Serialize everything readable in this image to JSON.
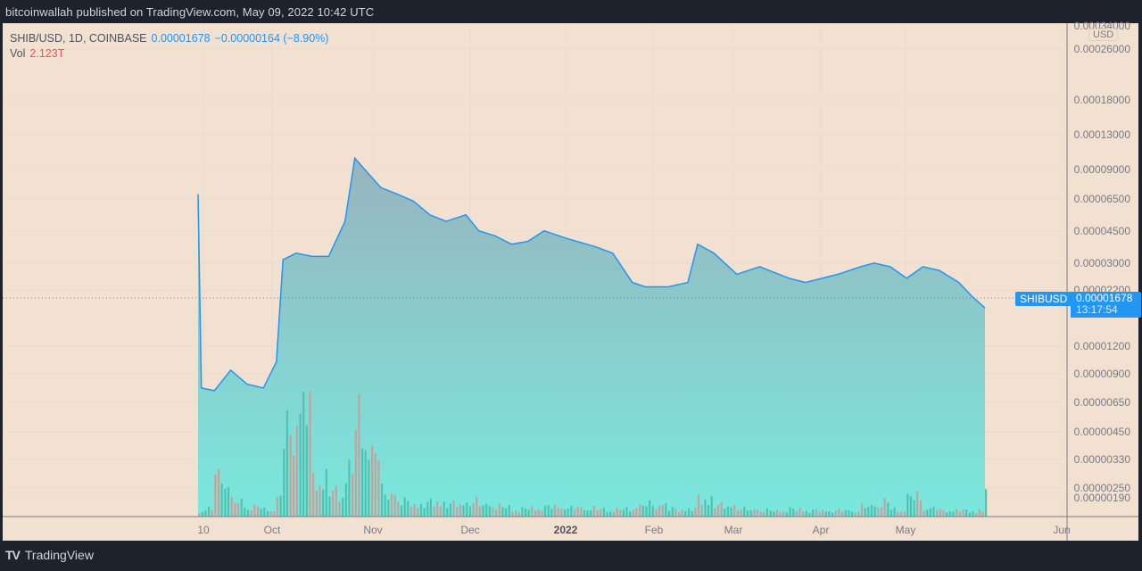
{
  "header": {
    "publish_text": "bitcoinwallah published on TradingView.com, May 09, 2022 10:42 UTC"
  },
  "legend": {
    "symbol": "SHIB/USD, 1D, COINBASE",
    "last_price": "0.00001678",
    "change": "−0.00000164 (−8.90%)",
    "vol_label": "Vol",
    "vol_value": "2.123T"
  },
  "price_axis": {
    "currency": "USD",
    "labels": [
      "0.00034000",
      "0.00026000",
      "0.00018000",
      "0.00013000",
      "0.00009000",
      "0.00006500",
      "0.00004500",
      "0.00003000",
      "0.00002200",
      "0.00001200",
      "0.00000900",
      "0.00000650",
      "0.00000450",
      "0.00000330",
      "0.00000250",
      "0.00000190"
    ]
  },
  "time_axis": {
    "labels": [
      "10",
      "Oct",
      "Nov",
      "Dec",
      "2022",
      "Feb",
      "Mar",
      "Apr",
      "May",
      "Jun"
    ]
  },
  "last_price_marker": {
    "symbol": "SHIBUSD",
    "price": "0.00001678",
    "countdown": "13:17:54"
  },
  "footer": {
    "brand": "TradingView",
    "logo_mark": "TV"
  },
  "colors": {
    "background": "#f2e0d0",
    "line": "#2196f3",
    "area_top": "#98b4bd",
    "area_bottom": "#79e8de",
    "volume_up": "#4fc3b0",
    "volume_down": "#c9a09a",
    "accent": "#2196f3",
    "vol_text": "#ef5350"
  },
  "chart_data": {
    "type": "area",
    "title": "SHIB/USD, 1D, COINBASE",
    "xlabel": "",
    "ylabel": "USD",
    "y_scale": "log",
    "ylim": [
      1.7e-06,
      0.00034
    ],
    "grid": true,
    "legend_position": "top-left",
    "x": [
      "2021-09-10",
      "2021-09-11",
      "2021-09-15",
      "2021-09-20",
      "2021-09-25",
      "2021-09-30",
      "2021-10-04",
      "2021-10-06",
      "2021-10-10",
      "2021-10-15",
      "2021-10-20",
      "2021-10-25",
      "2021-10-28",
      "2021-11-01",
      "2021-11-05",
      "2021-11-10",
      "2021-11-15",
      "2021-11-20",
      "2021-11-25",
      "2021-12-01",
      "2021-12-05",
      "2021-12-10",
      "2021-12-15",
      "2021-12-20",
      "2021-12-25",
      "2022-01-01",
      "2022-01-10",
      "2022-01-15",
      "2022-01-21",
      "2022-01-25",
      "2022-02-01",
      "2022-02-07",
      "2022-02-10",
      "2022-02-15",
      "2022-02-22",
      "2022-03-01",
      "2022-03-10",
      "2022-03-15",
      "2022-03-25",
      "2022-04-01",
      "2022-04-05",
      "2022-04-10",
      "2022-04-15",
      "2022-04-20",
      "2022-04-25",
      "2022-05-01",
      "2022-05-05",
      "2022-05-09"
    ],
    "series": [
      {
        "name": "SHIBUSD close",
        "values": [
          5.6e-05,
          7.2e-06,
          7e-06,
          8.7e-06,
          7.5e-06,
          7.2e-06,
          9.5e-06,
          2.8e-05,
          3e-05,
          2.9e-05,
          2.9e-05,
          4.2e-05,
          8.2e-05,
          7e-05,
          6e-05,
          5.6e-05,
          5.2e-05,
          4.5e-05,
          4.2e-05,
          4.5e-05,
          3.8e-05,
          3.6e-05,
          3.3e-05,
          3.4e-05,
          3.8e-05,
          3.5e-05,
          3.2e-05,
          3e-05,
          2.2e-05,
          2.1e-05,
          2.1e-05,
          2.2e-05,
          3.3e-05,
          3e-05,
          2.4e-05,
          2.6e-05,
          2.3e-05,
          2.2e-05,
          2.4e-05,
          2.6e-05,
          2.7e-05,
          2.6e-05,
          2.3e-05,
          2.6e-05,
          2.5e-05,
          2.2e-05,
          1.9e-05,
          1.68e-05
        ]
      },
      {
        "name": "Volume",
        "values": [
          0.3,
          0.6,
          3.5,
          1.2,
          0.8,
          0.6,
          1.5,
          7.0,
          9.5,
          3.2,
          2.0,
          4.0,
          7.5,
          5.5,
          2.0,
          1.2,
          1.0,
          1.2,
          1.0,
          1.2,
          1.0,
          0.8,
          0.6,
          0.7,
          0.8,
          0.7,
          0.6,
          0.6,
          0.9,
          1.0,
          0.6,
          0.6,
          1.5,
          0.9,
          0.6,
          0.5,
          0.6,
          0.5,
          0.5,
          0.8,
          1.2,
          0.6,
          1.6,
          0.7,
          0.5,
          0.5,
          0.5,
          2.123
        ]
      }
    ]
  }
}
